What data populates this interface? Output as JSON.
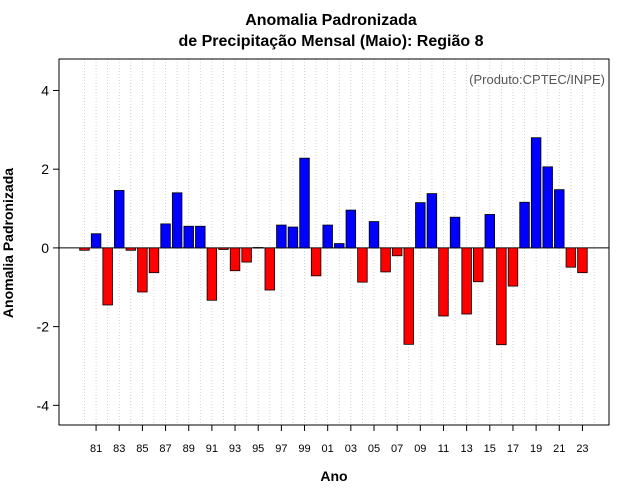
{
  "chart_data": {
    "type": "bar",
    "title_line1": "Anomalia Padronizada",
    "title_line2": "de Precipitação Mensal (Maio): Região 8",
    "xlabel": "Ano",
    "ylabel": "Anomalia Padronizada",
    "credit": "(Produto:CPTEC/INPE)",
    "ylim": [
      -4.5,
      4.8
    ],
    "yticks": [
      -4,
      -2,
      0,
      2,
      4
    ],
    "years": [
      1980,
      1981,
      1982,
      1983,
      1984,
      1985,
      1986,
      1987,
      1988,
      1989,
      1990,
      1991,
      1992,
      1993,
      1994,
      1995,
      1996,
      1997,
      1998,
      1999,
      2000,
      2001,
      2002,
      2003,
      2004,
      2005,
      2006,
      2007,
      2008,
      2009,
      2010,
      2011,
      2012,
      2013,
      2014,
      2015,
      2016,
      2017,
      2018,
      2019,
      2020,
      2021,
      2022,
      2023,
      2024
    ],
    "values": [
      -0.06,
      0.36,
      -1.45,
      1.46,
      -0.06,
      -1.12,
      -0.63,
      0.61,
      1.4,
      0.55,
      0.55,
      -1.33,
      -0.04,
      -0.58,
      -0.36,
      0.01,
      -1.07,
      0.58,
      0.53,
      2.28,
      -0.71,
      0.58,
      0.11,
      0.96,
      -0.87,
      0.67,
      -0.61,
      -0.2,
      -2.45,
      1.15,
      1.38,
      -1.73,
      0.78,
      -1.68,
      -0.86,
      0.85,
      -2.46,
      -0.97,
      1.16,
      2.8,
      2.06,
      1.48,
      -0.49,
      -0.63,
      null
    ],
    "xtick_labels": [
      "81",
      "83",
      "85",
      "87",
      "89",
      "91",
      "93",
      "95",
      "97",
      "99",
      "01",
      "03",
      "05",
      "07",
      "09",
      "11",
      "13",
      "15",
      "17",
      "19",
      "21",
      "23"
    ],
    "positive_color": "#0000ff",
    "negative_color": "#ff0000"
  }
}
